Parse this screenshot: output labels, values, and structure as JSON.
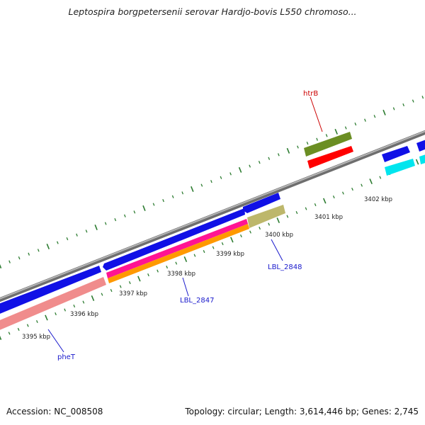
{
  "header": {
    "title": "Leptospira borgpetersenii serovar Hardjo-bovis L550 chromoso..."
  },
  "footer": {
    "accession": "Accession: NC_008508",
    "topology": "Topology: circular; Length: 3,614,446 bp; Genes: 2,745"
  },
  "scale": {
    "kbp_labels": [
      "3395 kbp",
      "3396 kbp",
      "3397 kbp",
      "3398 kbp",
      "3399 kbp",
      "3400 kbp",
      "3401 kbp",
      "3402 kbp"
    ]
  },
  "gene_labels": [
    {
      "name": "pheT",
      "color": "#1a1acc"
    },
    {
      "name": "LBL_2847",
      "color": "#1a1acc"
    },
    {
      "name": "LBL_2848",
      "color": "#1a1acc"
    },
    {
      "name": "htrB",
      "color": "#cc0000"
    }
  ],
  "colors": {
    "backbone": "#8a8a8a",
    "tick": "#2e7d32",
    "cds_forward": "#1010e6",
    "cds_reverse_pink": "#f08c8c",
    "magenta": "#ff1493",
    "orange": "#ff9900",
    "khaki": "#bdb76b",
    "olive": "#6b8e23",
    "red": "#ff0000",
    "cyan": "#00e5ee"
  }
}
